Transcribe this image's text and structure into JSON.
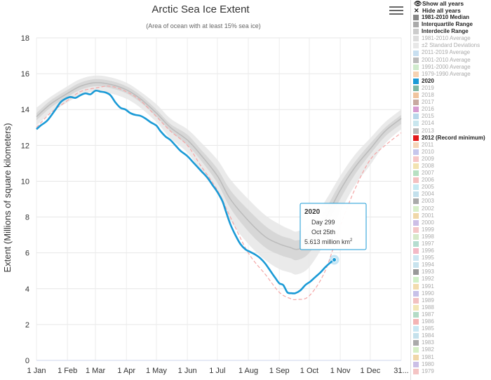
{
  "ui": {
    "menu_icon": "hamburger-menu-icon",
    "show_all_label": "Show all years",
    "hide_all_label": "Hide all years",
    "show_icon": "eye-icon",
    "hide_icon": "eye-slash-icon"
  },
  "legend": [
    {
      "label": "1981-2010 Median",
      "color": "#888888",
      "style": "bold"
    },
    {
      "label": "Interquartile Range",
      "color": "#aaaaaa",
      "style": "bold"
    },
    {
      "label": "Interdecile Range",
      "color": "#cccccc",
      "style": "bold"
    },
    {
      "label": "1981-2010 Average",
      "color": "#dddddd",
      "style": "dim"
    },
    {
      "label": "±2 Standard Deviations",
      "color": "#e8e8e8",
      "style": "dim"
    },
    {
      "label": "2011-2019 Average",
      "color": "#c8dff0",
      "style": "dim"
    },
    {
      "label": "2001-2010 Average",
      "color": "#bbbbbb",
      "style": "dim"
    },
    {
      "label": "1991-2000 Average",
      "color": "#cfeacc",
      "style": "dim"
    },
    {
      "label": "1979-1990 Average",
      "color": "#f6d2b2",
      "style": "dim"
    },
    {
      "label": "2020",
      "color": "#1a9ad6",
      "style": "bold"
    },
    {
      "label": "2019",
      "color": "#7fb8a4",
      "style": "dim"
    },
    {
      "label": "2018",
      "color": "#f0c49e",
      "style": "dim"
    },
    {
      "label": "2017",
      "color": "#c8a9a0",
      "style": "dim"
    },
    {
      "label": "2016",
      "color": "#d79bd0",
      "style": "dim"
    },
    {
      "label": "2015",
      "color": "#b9d7ea",
      "style": "dim"
    },
    {
      "label": "2014",
      "color": "#c9e6ee",
      "style": "dim"
    },
    {
      "label": "2013",
      "color": "#bbbbbb",
      "style": "dim"
    },
    {
      "label": "2012 (Record minimum)",
      "color": "#e31a1c",
      "style": "bold"
    },
    {
      "label": "2011",
      "color": "#f5d5b8",
      "style": "dim"
    },
    {
      "label": "2010",
      "color": "#c6c6ec",
      "style": "dim"
    },
    {
      "label": "2009",
      "color": "#f6c6c6",
      "style": "dim"
    },
    {
      "label": "2008",
      "color": "#f2e3b0",
      "style": "dim"
    },
    {
      "label": "2007",
      "color": "#b7e0c2",
      "style": "dim"
    },
    {
      "label": "2006",
      "color": "#f4c0c0",
      "style": "dim"
    },
    {
      "label": "2005",
      "color": "#c6e9f2",
      "style": "dim"
    },
    {
      "label": "2004",
      "color": "#c3e0ec",
      "style": "dim"
    },
    {
      "label": "2003",
      "color": "#aaaaaa",
      "style": "dim"
    },
    {
      "label": "2002",
      "color": "#d7efc9",
      "style": "dim"
    },
    {
      "label": "2001",
      "color": "#f0d8a8",
      "style": "dim"
    },
    {
      "label": "2000",
      "color": "#cdbfe6",
      "style": "dim"
    },
    {
      "label": "1999",
      "color": "#f4c7c7",
      "style": "dim"
    },
    {
      "label": "1998",
      "color": "#d6e9c9",
      "style": "dim"
    },
    {
      "label": "1997",
      "color": "#b5ddd0",
      "style": "dim"
    },
    {
      "label": "1996",
      "color": "#f3b9c6",
      "style": "dim"
    },
    {
      "label": "1995",
      "color": "#cde6f2",
      "style": "dim"
    },
    {
      "label": "1994",
      "color": "#c8e3ee",
      "style": "dim"
    },
    {
      "label": "1993",
      "color": "#999999",
      "style": "dim"
    },
    {
      "label": "1992",
      "color": "#d0f0c8",
      "style": "dim"
    },
    {
      "label": "1991",
      "color": "#f2dcae",
      "style": "dim"
    },
    {
      "label": "1990",
      "color": "#c7c1e8",
      "style": "dim"
    },
    {
      "label": "1989",
      "color": "#f2c1c1",
      "style": "dim"
    },
    {
      "label": "1988",
      "color": "#f2e6b6",
      "style": "dim"
    },
    {
      "label": "1987",
      "color": "#b3dbc6",
      "style": "dim"
    },
    {
      "label": "1986",
      "color": "#f4b4b4",
      "style": "dim"
    },
    {
      "label": "1985",
      "color": "#c9e7f3",
      "style": "dim"
    },
    {
      "label": "1984",
      "color": "#c5e1ec",
      "style": "dim"
    },
    {
      "label": "1983",
      "color": "#aaaaaa",
      "style": "dim"
    },
    {
      "label": "1982",
      "color": "#d5efc6",
      "style": "dim"
    },
    {
      "label": "1981",
      "color": "#f0d7a9",
      "style": "dim"
    },
    {
      "label": "1980",
      "color": "#cbbfe6",
      "style": "dim"
    },
    {
      "label": "1979",
      "color": "#f4c4c4",
      "style": "dim"
    }
  ],
  "tooltip": {
    "year": "2020",
    "day": "Day 299",
    "date": "Oct 25th",
    "value_text": "5.613 million km",
    "unit_sup": "2"
  },
  "chart_data": {
    "type": "line",
    "title": "Arctic Sea Ice Extent",
    "subtitle": "(Area of ocean with at least 15% sea ice)",
    "ylabel": "Extent (Millions of square kilometers)",
    "xlabel": "",
    "ylim": [
      0,
      18
    ],
    "xlim": [
      1,
      366
    ],
    "yticks": [
      0,
      2,
      4,
      6,
      8,
      10,
      12,
      14,
      16,
      18
    ],
    "xticks": [
      {
        "day": 1,
        "label": "1 Jan"
      },
      {
        "day": 32,
        "label": "1 Feb"
      },
      {
        "day": 60,
        "label": "1 Mar"
      },
      {
        "day": 91,
        "label": "1 Apr"
      },
      {
        "day": 121,
        "label": "1 May"
      },
      {
        "day": 152,
        "label": "1 Jun"
      },
      {
        "day": 182,
        "label": "1 Jul"
      },
      {
        "day": 213,
        "label": "1 Aug"
      },
      {
        "day": 244,
        "label": "1 Sep"
      },
      {
        "day": 274,
        "label": "1 Oct"
      },
      {
        "day": 305,
        "label": "1 Nov"
      },
      {
        "day": 335,
        "label": "1 Dec"
      },
      {
        "day": 366,
        "label": "31..."
      }
    ],
    "grid": true,
    "legend_position": "right",
    "series": [
      {
        "name": "1981-2010 Median",
        "color": "#bbbbbb",
        "x": [
          1,
          15,
          32,
          45,
          60,
          75,
          91,
          105,
          121,
          135,
          152,
          165,
          182,
          195,
          213,
          230,
          244,
          255,
          262,
          274,
          290,
          305,
          320,
          335,
          350,
          366
        ],
        "y": [
          13.6,
          14.3,
          14.9,
          15.3,
          15.5,
          15.4,
          15.1,
          14.6,
          13.8,
          13.0,
          12.3,
          11.5,
          10.3,
          9.0,
          7.8,
          6.9,
          6.5,
          6.3,
          6.2,
          6.5,
          7.9,
          9.5,
          10.8,
          11.8,
          12.8,
          13.5
        ]
      },
      {
        "name": "Interdecile Range",
        "color": "#e6e6e6",
        "x": [
          1,
          15,
          32,
          45,
          60,
          75,
          91,
          105,
          121,
          135,
          152,
          165,
          182,
          195,
          213,
          230,
          244,
          255,
          262,
          274,
          290,
          305,
          320,
          335,
          350,
          366
        ],
        "upper": [
          14.1,
          14.7,
          15.3,
          15.7,
          15.9,
          15.8,
          15.5,
          15.0,
          14.3,
          13.5,
          12.9,
          12.2,
          11.2,
          10.1,
          9.0,
          8.1,
          7.6,
          7.3,
          7.2,
          7.6,
          8.9,
          10.3,
          11.5,
          12.4,
          13.3,
          14.0
        ],
        "lower": [
          13.1,
          13.8,
          14.4,
          14.8,
          15.0,
          14.9,
          14.6,
          14.1,
          13.3,
          12.4,
          11.6,
          10.6,
          9.3,
          7.8,
          6.5,
          5.6,
          5.1,
          4.9,
          4.8,
          5.2,
          6.6,
          8.3,
          9.8,
          10.9,
          12.1,
          12.9
        ]
      },
      {
        "name": "Interquartile Range",
        "color": "#d4d4d4",
        "x": [
          1,
          15,
          32,
          45,
          60,
          75,
          91,
          105,
          121,
          135,
          152,
          165,
          182,
          195,
          213,
          230,
          244,
          255,
          262,
          274,
          290,
          305,
          320,
          335,
          350,
          366
        ],
        "upper": [
          13.8,
          14.5,
          15.1,
          15.5,
          15.7,
          15.6,
          15.3,
          14.8,
          14.0,
          13.2,
          12.6,
          11.8,
          10.7,
          9.5,
          8.4,
          7.5,
          7.0,
          6.8,
          6.7,
          7.0,
          8.4,
          9.9,
          11.1,
          12.1,
          13.0,
          13.7
        ],
        "lower": [
          13.4,
          14.1,
          14.7,
          15.1,
          15.3,
          15.2,
          14.9,
          14.4,
          13.6,
          12.8,
          12.0,
          11.2,
          9.9,
          8.5,
          7.2,
          6.3,
          5.9,
          5.7,
          5.6,
          6.0,
          7.4,
          9.0,
          10.4,
          11.5,
          12.5,
          13.2
        ]
      },
      {
        "name": "2012 (Record minimum)",
        "color": "#f4a6a6",
        "x": [
          1,
          15,
          32,
          45,
          60,
          75,
          91,
          105,
          121,
          135,
          152,
          165,
          182,
          195,
          213,
          230,
          244,
          255,
          262,
          274,
          290,
          305,
          320,
          335,
          350,
          366
        ],
        "y": [
          13.0,
          13.8,
          14.5,
          15.0,
          15.2,
          15.3,
          15.0,
          14.5,
          13.6,
          12.8,
          12.0,
          10.9,
          9.5,
          8.0,
          6.0,
          4.8,
          3.8,
          3.45,
          3.4,
          3.6,
          5.0,
          7.5,
          9.6,
          11.2,
          12.0,
          12.7
        ]
      },
      {
        "name": "2020",
        "color": "#1a9ad6",
        "x": [
          1,
          5,
          12,
          20,
          25,
          30,
          35,
          40,
          45,
          50,
          55,
          60,
          65,
          70,
          75,
          80,
          85,
          90,
          95,
          100,
          105,
          110,
          115,
          121,
          125,
          130,
          135,
          140,
          145,
          152,
          157,
          162,
          167,
          172,
          177,
          182,
          187,
          190,
          195,
          200,
          205,
          210,
          215,
          220,
          225,
          230,
          235,
          240,
          244,
          248,
          252,
          256,
          260,
          265,
          270,
          275,
          280,
          285,
          290,
          295,
          299
        ],
        "y": [
          12.9,
          13.1,
          13.4,
          14.0,
          14.4,
          14.6,
          14.7,
          14.65,
          14.8,
          14.9,
          14.85,
          15.05,
          15.0,
          14.95,
          14.8,
          14.4,
          14.1,
          14.0,
          13.8,
          13.7,
          13.65,
          13.5,
          13.3,
          13.1,
          12.8,
          12.5,
          12.3,
          12.0,
          11.7,
          11.4,
          11.1,
          10.8,
          10.5,
          10.2,
          9.8,
          9.4,
          8.9,
          8.4,
          7.6,
          7.0,
          6.5,
          6.2,
          6.05,
          5.9,
          5.7,
          5.4,
          5.0,
          4.6,
          4.3,
          4.2,
          3.8,
          3.75,
          3.75,
          3.9,
          4.2,
          4.4,
          4.65,
          4.9,
          5.2,
          5.45,
          5.613
        ]
      }
    ],
    "highlight_point": {
      "series": "2020",
      "x": 299,
      "y": 5.613
    }
  }
}
